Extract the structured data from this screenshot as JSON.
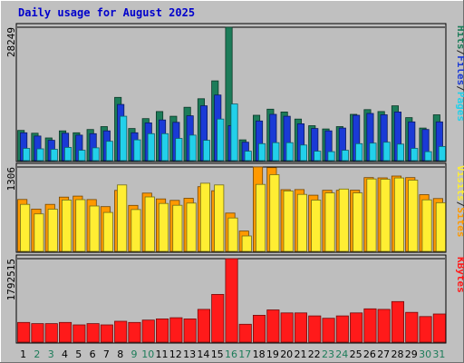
{
  "chart_data": {
    "type": "bar",
    "title": "Daily usage for August 2025",
    "categories": [
      "1",
      "2",
      "3",
      "4",
      "5",
      "6",
      "7",
      "8",
      "9",
      "10",
      "11",
      "12",
      "13",
      "14",
      "15",
      "16",
      "17",
      "18",
      "19",
      "20",
      "21",
      "22",
      "23",
      "24",
      "25",
      "26",
      "27",
      "28",
      "29",
      "30",
      "31"
    ],
    "weekend_days": [
      "2",
      "3",
      "9",
      "10",
      "16",
      "17",
      "23",
      "24",
      "30",
      "31"
    ],
    "panels": [
      {
        "id": "hits-files-pages",
        "ymax_label": "28249",
        "ylim": [
          0,
          28249
        ],
        "series": [
          {
            "name": "Hits",
            "color": "#1c7c59",
            "values": [
              6400,
              5800,
              4800,
              6300,
              5900,
              6600,
              7200,
              13400,
              6800,
              8900,
              10400,
              9400,
              11300,
              13100,
              16900,
              28249,
              4400,
              9600,
              10900,
              10300,
              8800,
              7400,
              6700,
              7200,
              9800,
              10800,
              10400,
              11600,
              9100,
              6900,
              9700
            ]
          },
          {
            "name": "Files",
            "color": "#1a3ad6",
            "values": [
              5900,
              5200,
              4300,
              5800,
              5400,
              5700,
              6300,
              11900,
              5900,
              8000,
              8600,
              8100,
              9500,
              11600,
              13900,
              7400,
              3900,
              8400,
              9800,
              9400,
              7800,
              6800,
              6300,
              6900,
              9600,
              10000,
              9700,
              10300,
              8200,
              6600,
              8200
            ]
          },
          {
            "name": "Pages",
            "color": "#22d0ea",
            "values": [
              2600,
              2500,
              2400,
              2800,
              2200,
              2700,
              4100,
              9400,
              4400,
              5700,
              5700,
              4700,
              5400,
              4300,
              8800,
              12000,
              2000,
              3600,
              3800,
              3800,
              3300,
              2000,
              1900,
              2200,
              3600,
              3700,
              3900,
              3500,
              2600,
              1900,
              3000
            ]
          }
        ],
        "legend": [
          "Pages",
          "/",
          "Files",
          "/",
          "Hits"
        ],
        "legend_colors": [
          "#22d0ea",
          "#222222",
          "#1a3ad6",
          "#222222",
          "#1c7c59"
        ]
      },
      {
        "id": "sites-visits",
        "ymax_label": "1306",
        "ylim": [
          0,
          1306
        ],
        "series": [
          {
            "name": "Sites",
            "color": "#ff9900",
            "values": [
              803,
              655,
              728,
              840,
              855,
              802,
              692,
              944,
              712,
              902,
              812,
              789,
              822,
              1001,
              938,
              592,
              314,
              1306,
              1296,
              955,
              957,
              869,
              945,
              945,
              947,
              1141,
              1137,
              1166,
              1142,
              878,
              818
            ]
          },
          {
            "name": "Visits",
            "color": "#ffee33",
            "values": [
              728,
              580,
              653,
              795,
              800,
              702,
              602,
              1028,
              647,
              842,
              742,
              714,
              747,
              1055,
              1028,
              517,
              239,
              1036,
              1186,
              935,
              882,
              794,
              905,
              965,
              905,
              1121,
              1117,
              1136,
              1102,
              798,
              753
            ]
          }
        ],
        "legend": [
          "Sites",
          "/",
          "Visits"
        ],
        "legend_colors": [
          "#ff9900",
          "#222222",
          "#ffee33"
        ]
      },
      {
        "id": "kbytes",
        "ymax_label": "1792515",
        "ylim": [
          0,
          1792515
        ],
        "series": [
          {
            "name": "KBytes",
            "color": "#ff1a1a",
            "values": [
              422000,
              397000,
              397000,
              422000,
              371000,
              397000,
              371000,
              448000,
              422000,
              473000,
              499000,
              524000,
              499000,
              704000,
              1024000,
              1792515,
              384000,
              576000,
              691000,
              627000,
              627000,
              563000,
              512000,
              563000,
              627000,
              716000,
              704000,
              870000,
              640000,
              550000,
              604000
            ]
          }
        ],
        "legend": [
          "KBytes"
        ],
        "legend_colors": [
          "#ff1a1a"
        ]
      }
    ]
  }
}
